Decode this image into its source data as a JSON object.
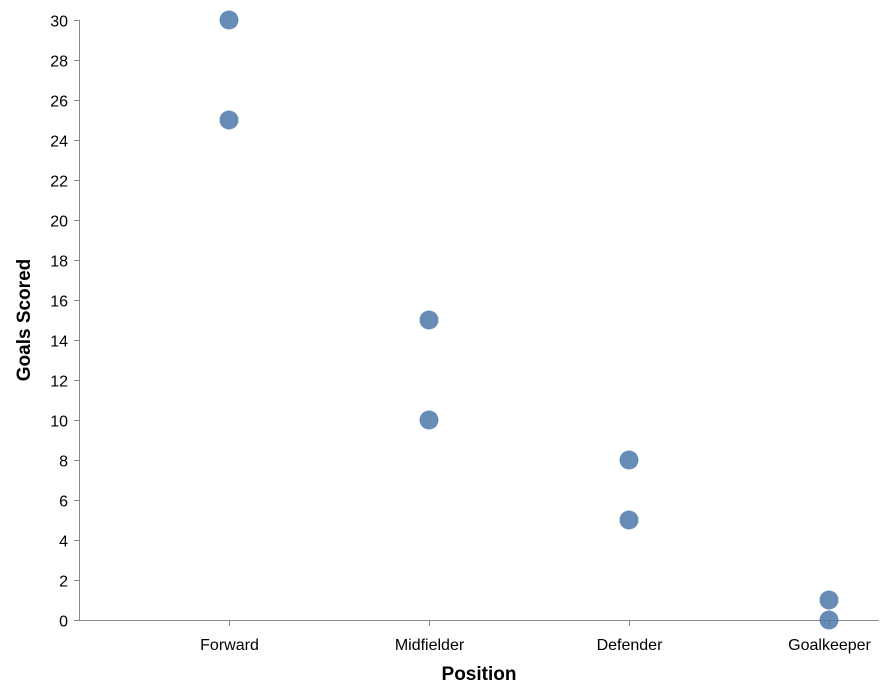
{
  "chart_data": {
    "type": "scatter",
    "title": "",
    "xlabel": "Position",
    "ylabel": "Goals Scored",
    "categories": [
      "Forward",
      "Midfielder",
      "Defender",
      "Goalkeeper"
    ],
    "points": [
      {
        "x": "Forward",
        "y": 30
      },
      {
        "x": "Forward",
        "y": 25
      },
      {
        "x": "Midfielder",
        "y": 15
      },
      {
        "x": "Midfielder",
        "y": 10
      },
      {
        "x": "Defender",
        "y": 8
      },
      {
        "x": "Defender",
        "y": 5
      },
      {
        "x": "Goalkeeper",
        "y": 1
      },
      {
        "x": "Goalkeeper",
        "y": 0
      }
    ],
    "yticks": [
      0,
      2,
      4,
      6,
      8,
      10,
      12,
      14,
      16,
      18,
      20,
      22,
      24,
      26,
      28,
      30
    ],
    "ylim": [
      0,
      30
    ],
    "grid": false,
    "point_color": "#4c78a8"
  }
}
